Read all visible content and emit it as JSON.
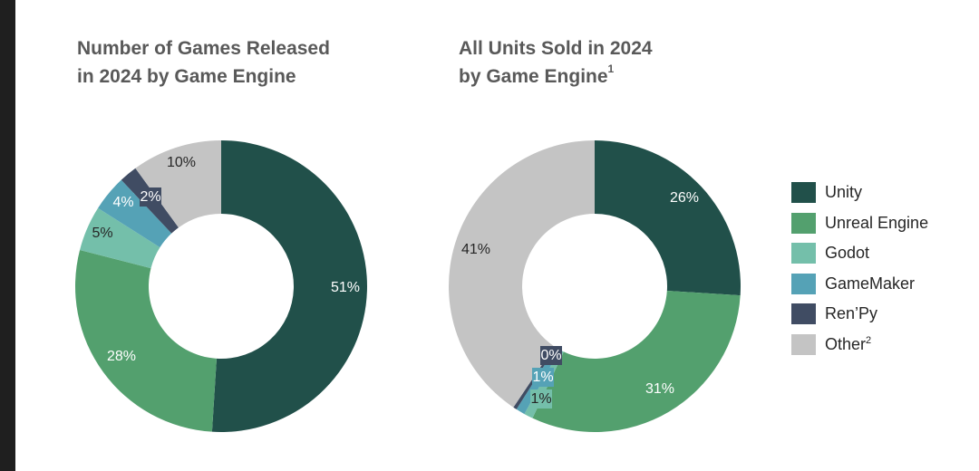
{
  "chart_data": [
    {
      "type": "donut",
      "title": "Number of Games Released in 2024 by Game Engine",
      "title_lines": [
        "Number of Games Released",
        "in 2024 by Game Engine"
      ],
      "categories": [
        "Unity",
        "Unreal Engine",
        "Godot",
        "GameMaker",
        "Ren'Py",
        "Other"
      ],
      "values": [
        51,
        28,
        5,
        4,
        2,
        10
      ],
      "unit": "%",
      "data_labels": [
        "51%",
        "28%",
        "5%",
        "4%",
        "2%",
        "10%"
      ]
    },
    {
      "type": "donut",
      "title": "All Units Sold in 2024 by Game Engine",
      "title_lines": [
        "All Units Sold in 2024",
        "by Game Engine"
      ],
      "title_superscript": "1",
      "categories": [
        "Unity",
        "Unreal Engine",
        "Godot",
        "GameMaker",
        "Ren'Py",
        "Other"
      ],
      "values": [
        26,
        31,
        1,
        1,
        0.4,
        40.6
      ],
      "unit": "%",
      "data_labels": [
        "26%",
        "31%",
        "1%",
        "1%",
        "0%",
        "41%"
      ]
    }
  ],
  "legend": {
    "items": [
      {
        "label": "Unity",
        "sup": "",
        "color": "#21504a"
      },
      {
        "label": "Unreal Engine",
        "sup": "",
        "color": "#53a06e"
      },
      {
        "label": "Godot",
        "sup": "",
        "color": "#74bfaa"
      },
      {
        "label": "GameMaker",
        "sup": "",
        "color": "#55a2b6"
      },
      {
        "label": "Ren’Py",
        "sup": "",
        "color": "#404c63"
      },
      {
        "label": "Other",
        "sup": "2",
        "color": "#c4c4c4"
      }
    ],
    "placement": "right"
  }
}
